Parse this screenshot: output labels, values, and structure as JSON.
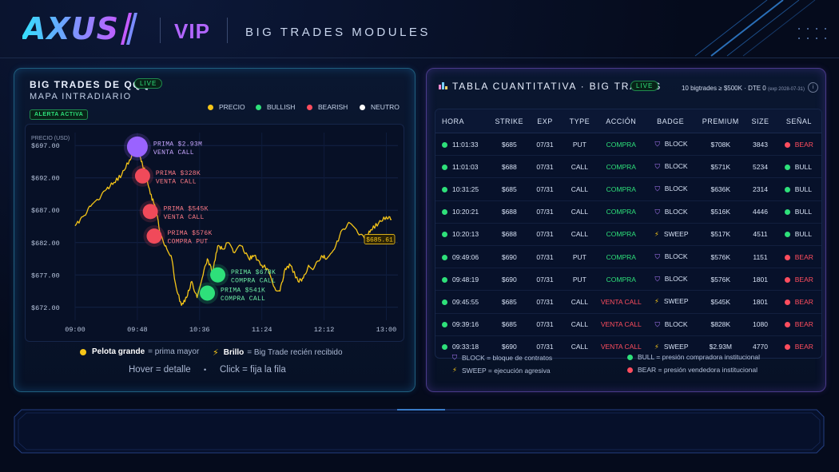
{
  "header": {
    "logo_text": "AXUS",
    "vip_label": "VIP",
    "module_title": "BIG TRADES MODULES"
  },
  "left_panel": {
    "title": "BIG TRADES DE QQQ",
    "live_label": "LIVE",
    "subtitle": "MAPA INTRADIARIO",
    "alert_label": "ALERTA ACTIVA",
    "legend": [
      {
        "label": "PRECIO",
        "color": "#f5c518"
      },
      {
        "label": "BULLISH",
        "color": "#2ee07a"
      },
      {
        "label": "BEARISH",
        "color": "#ff4d5e"
      },
      {
        "label": "NEUTRO",
        "color": "#ffffff"
      }
    ],
    "footer_ball_bold": "Pelota grande",
    "footer_ball_text": "= prima mayor",
    "footer_glow_bold": "Brillo",
    "footer_glow_text": "= Big Trade recién recibido",
    "footer_hover": "Hover = detalle",
    "footer_dot": "•",
    "footer_click": "Click = fija la fila"
  },
  "chart_data": {
    "type": "line",
    "ylabel": "PRECIO (USD)",
    "y_ticks": [
      "$697.00",
      "$692.00",
      "$687.00",
      "$682.00",
      "$677.00",
      "$672.00"
    ],
    "x_ticks": [
      "09:00",
      "09:48",
      "10:36",
      "11:24",
      "12:12",
      "13:00"
    ],
    "ylim": [
      670,
      699
    ],
    "last_price_label": "$685.61",
    "series": [
      {
        "values": [
          [
            "09:00",
            684.6
          ],
          [
            "09:06",
            686.0
          ],
          [
            "09:12",
            687.6
          ],
          [
            "09:18",
            688.6
          ],
          [
            "09:24",
            690.2
          ],
          [
            "09:30",
            691.3
          ],
          [
            "09:36",
            692.5
          ],
          [
            "09:42",
            694.8
          ],
          [
            "09:46",
            696.3
          ],
          [
            "09:48",
            696.6
          ],
          [
            "09:51",
            694.5
          ],
          [
            "09:54",
            693.0
          ],
          [
            "09:58",
            689.5
          ],
          [
            "10:02",
            687.5
          ],
          [
            "10:06",
            683.0
          ],
          [
            "10:10",
            681.5
          ],
          [
            "10:14",
            680.0
          ],
          [
            "10:18",
            675.0
          ],
          [
            "10:22",
            672.3
          ],
          [
            "10:26",
            673.5
          ],
          [
            "10:30",
            676.0
          ],
          [
            "10:34",
            673.5
          ],
          [
            "10:38",
            676.5
          ],
          [
            "10:42",
            679.5
          ],
          [
            "10:46",
            677.5
          ],
          [
            "10:50",
            681.5
          ],
          [
            "10:54",
            681.0
          ],
          [
            "10:58",
            682.0
          ],
          [
            "11:02",
            680.5
          ],
          [
            "11:08",
            681.5
          ],
          [
            "11:14",
            679.5
          ],
          [
            "11:18",
            680.0
          ],
          [
            "11:24",
            678.5
          ],
          [
            "11:28",
            678.0
          ],
          [
            "11:34",
            675.0
          ],
          [
            "11:38",
            674.5
          ],
          [
            "11:42",
            678.0
          ],
          [
            "11:46",
            678.5
          ],
          [
            "11:52",
            676.0
          ],
          [
            "11:56",
            676.5
          ],
          [
            "12:00",
            678.5
          ],
          [
            "12:04",
            678.0
          ],
          [
            "12:10",
            680.0
          ],
          [
            "12:14",
            679.5
          ],
          [
            "12:20",
            681.0
          ],
          [
            "12:26",
            684.0
          ],
          [
            "12:32",
            685.0
          ],
          [
            "12:38",
            683.5
          ],
          [
            "12:44",
            682.5
          ],
          [
            "12:48",
            684.0
          ],
          [
            "12:54",
            685.0
          ],
          [
            "13:00",
            686.0
          ],
          [
            "13:04",
            685.6
          ]
        ]
      }
    ],
    "trades": [
      {
        "time": "09:48",
        "price": 696.8,
        "label1": "PRIMA $2.93M",
        "label2": "VENTA CALL",
        "kind": "neutral_big",
        "color": "#9a63ff"
      },
      {
        "time": "09:52",
        "price": 692.3,
        "label1": "PRIMA $328K",
        "label2": "VENTA CALL",
        "kind": "bearish",
        "color": "#f04a5a"
      },
      {
        "time": "09:58",
        "price": 686.8,
        "label1": "PRIMA $545K",
        "label2": "VENTA CALL",
        "kind": "bearish",
        "color": "#f04a5a"
      },
      {
        "time": "10:01",
        "price": 683.0,
        "label1": "PRIMA $576K",
        "label2": "COMPRA PUT",
        "kind": "bearish",
        "color": "#f04a5a"
      },
      {
        "time": "10:50",
        "price": 677.0,
        "label1": "PRIMA $678K",
        "label2": "COMPRA CALL",
        "kind": "bullish",
        "color": "#2ee07a"
      },
      {
        "time": "10:42",
        "price": 674.2,
        "label1": "PRIMA $541K",
        "label2": "COMPRA CALL",
        "kind": "bullish",
        "color": "#2ee07a"
      }
    ]
  },
  "right_panel": {
    "title": "TABLA CUANTITATIVA · BIG TRADES",
    "live_label": "LIVE",
    "meta": "10 bigtrades ≥ $500K · DTE 0",
    "meta_small": "(exp 2028-07-31)",
    "info_icon": "i",
    "columns": [
      "HORA",
      "STRIKE",
      "EXP",
      "TYPE",
      "ACCIÓN",
      "BADGE",
      "PREMIUM",
      "SIZE",
      "SEÑAL"
    ],
    "rows": [
      {
        "hora": "11:01:33",
        "strike": "$685",
        "exp": "07/31",
        "type": "PUT",
        "accion": "COMPRA",
        "badge": "BLOCK",
        "premium": "$708K",
        "size": "3843",
        "senal": "BEAR"
      },
      {
        "hora": "11:01:03",
        "strike": "$688",
        "exp": "07/31",
        "type": "CALL",
        "accion": "COMPRA",
        "badge": "BLOCK",
        "premium": "$571K",
        "size": "5234",
        "senal": "BULL"
      },
      {
        "hora": "10:31:25",
        "strike": "$685",
        "exp": "07/31",
        "type": "CALL",
        "accion": "COMPRA",
        "badge": "BLOCK",
        "premium": "$636K",
        "size": "2314",
        "senal": "BULL"
      },
      {
        "hora": "10:20:21",
        "strike": "$688",
        "exp": "07/31",
        "type": "CALL",
        "accion": "COMPRA",
        "badge": "BLOCK",
        "premium": "$516K",
        "size": "4446",
        "senal": "BULL"
      },
      {
        "hora": "10:20:13",
        "strike": "$688",
        "exp": "07/31",
        "type": "CALL",
        "accion": "COMPRA",
        "badge": "SWEEP",
        "premium": "$517K",
        "size": "4511",
        "senal": "BULL"
      },
      {
        "hora": "09:49:06",
        "strike": "$690",
        "exp": "07/31",
        "type": "PUT",
        "accion": "COMPRA",
        "badge": "BLOCK",
        "premium": "$576K",
        "size": "1151",
        "senal": "BEAR"
      },
      {
        "hora": "09:48:19",
        "strike": "$690",
        "exp": "07/31",
        "type": "PUT",
        "accion": "COMPRA",
        "badge": "BLOCK",
        "premium": "$576K",
        "size": "1801",
        "senal": "BEAR"
      },
      {
        "hora": "09:45:55",
        "strike": "$685",
        "exp": "07/31",
        "type": "CALL",
        "accion": "VENTA CALL",
        "badge": "SWEEP",
        "premium": "$545K",
        "size": "1801",
        "senal": "BEAR"
      },
      {
        "hora": "09:39:16",
        "strike": "$685",
        "exp": "07/31",
        "type": "CALL",
        "accion": "VENTA CALL",
        "badge": "BLOCK",
        "premium": "$828K",
        "size": "1080",
        "senal": "BEAR"
      },
      {
        "hora": "09:33:18",
        "strike": "$690",
        "exp": "07/31",
        "type": "CALL",
        "accion": "VENTA CALL",
        "badge": "SWEEP",
        "premium": "$2.93M",
        "size": "4770",
        "senal": "BEAR"
      }
    ],
    "legend": {
      "block": "BLOCK = bloque de contratos",
      "sweep": "SWEEP = ejecución agresiva",
      "bull": "BULL = presión compradora institucional",
      "bear": "BEAR = presión vendedora institucional"
    }
  },
  "colors": {
    "bull": "#2ee07a",
    "bear": "#ff4d5e",
    "price": "#f5c518",
    "block_icon": "#b07cff",
    "sweep_icon": "#f5c518"
  },
  "icons": {
    "block": "shield-icon",
    "sweep": "lightning-icon",
    "table": "bar-chart-icon"
  }
}
